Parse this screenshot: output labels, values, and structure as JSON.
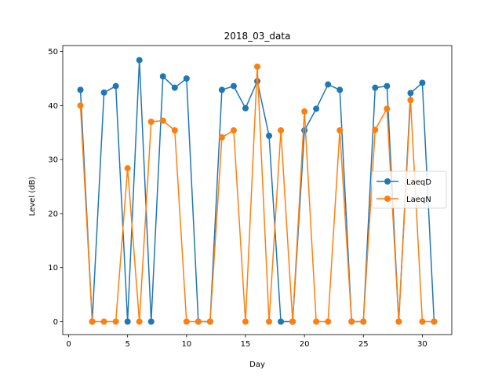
{
  "chart_data": {
    "type": "line",
    "title": "2018_03_data",
    "xlabel": "Day",
    "ylabel": "Level (dB)",
    "xlim": [
      -0.5,
      32.5
    ],
    "ylim": [
      -2.4,
      51.1
    ],
    "xticks": [
      0,
      5,
      10,
      15,
      20,
      25,
      30
    ],
    "yticks": [
      0,
      10,
      20,
      30,
      40,
      50
    ],
    "legend_position": "center-right",
    "x": [
      1,
      2,
      3,
      4,
      5,
      6,
      7,
      8,
      9,
      10,
      11,
      12,
      13,
      14,
      15,
      16,
      17,
      18,
      19,
      20,
      21,
      22,
      23,
      24,
      25,
      26,
      27,
      28,
      29,
      30,
      31
    ],
    "series": [
      {
        "name": "LaeqD",
        "color": "#1f77b4",
        "values": [
          42.9,
          0,
          42.4,
          43.6,
          0,
          48.4,
          0,
          45.4,
          43.3,
          45.0,
          0,
          0,
          42.9,
          43.6,
          39.5,
          44.5,
          34.4,
          0,
          0,
          35.4,
          39.4,
          43.9,
          42.9,
          0,
          0,
          43.3,
          43.6,
          0,
          42.3,
          44.2,
          0
        ]
      },
      {
        "name": "LaeqN",
        "color": "#ff7f0e",
        "values": [
          40.0,
          0,
          0,
          0,
          28.4,
          0,
          37.0,
          37.2,
          35.4,
          0,
          0,
          0,
          34.1,
          35.4,
          0,
          47.2,
          0,
          35.4,
          0,
          38.9,
          0,
          0,
          35.4,
          0,
          0,
          35.5,
          39.4,
          0,
          41.0,
          0,
          0
        ]
      }
    ]
  }
}
